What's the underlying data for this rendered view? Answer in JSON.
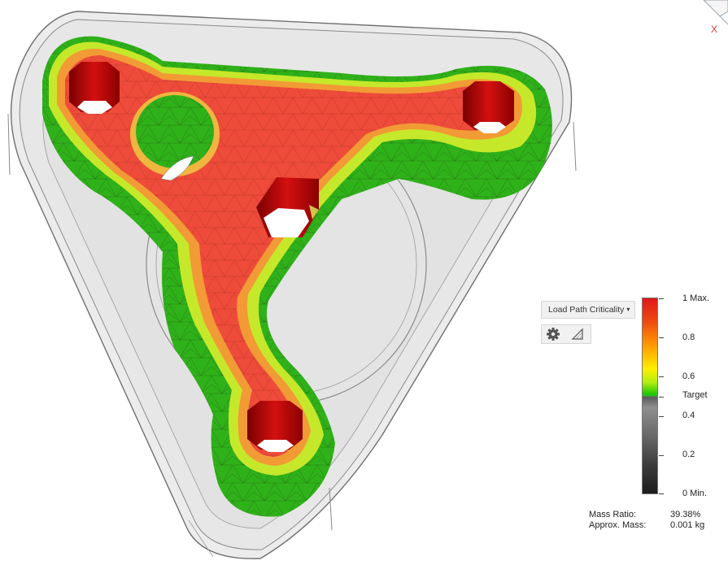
{
  "analysis": {
    "result_dropdown": {
      "label": "Load Path Criticality",
      "caret": "▾"
    },
    "toolbar": [
      {
        "name": "settings-gear-icon"
      },
      {
        "name": "legend-toggle-icon"
      }
    ]
  },
  "viewcube": {
    "axis_label": "X"
  },
  "legend": {
    "labels": [
      "1 Max.",
      "0.8",
      "0.6",
      "Target",
      "0.4",
      "0.2",
      "0 Min."
    ],
    "colors": {
      "max": "#e01818",
      "high": "#ff9a00",
      "mid": "#ffee00",
      "target": "#22c700",
      "low": "#5b5b5b",
      "min": "#1d1d1d"
    }
  },
  "summary": {
    "mass_ratio_label": "Mass Ratio:",
    "mass_ratio_value": "39.38%",
    "approx_mass_label": "Approx. Mass:",
    "approx_mass_value": "0.001 kg"
  }
}
